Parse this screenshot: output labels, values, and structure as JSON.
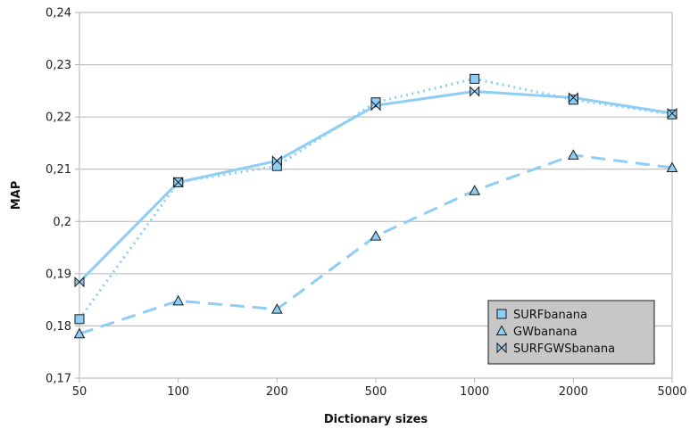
{
  "chart_data": {
    "type": "line",
    "title": "",
    "xlabel": "Dictionary sizes",
    "ylabel": "MAP",
    "categories": [
      "50",
      "100",
      "200",
      "500",
      "1000",
      "2000",
      "5000"
    ],
    "ylim": [
      0.17,
      0.24
    ],
    "yticks": [
      0.17,
      0.18,
      0.19,
      0.2,
      0.21,
      0.22,
      0.23,
      0.24
    ],
    "ytick_labels": [
      "0,17",
      "0,18",
      "0,19",
      "0,2",
      "0,21",
      "0,22",
      "0,23",
      "0,24"
    ],
    "grid": true,
    "legend_position": "bottom-right",
    "series": [
      {
        "name": "SURFbanana",
        "values": [
          0.1813,
          0.2075,
          0.2106,
          0.2228,
          0.2273,
          0.2233,
          0.2205
        ],
        "line": "dotted",
        "marker": "square",
        "color": "#8ecdf5"
      },
      {
        "name": "GWbanana",
        "values": [
          0.1785,
          0.1848,
          0.1832,
          0.1972,
          0.2059,
          0.2127,
          0.2103
        ],
        "line": "dashed",
        "marker": "triangle",
        "color": "#8ecdf5"
      },
      {
        "name": "SURFGWSbanana",
        "values": [
          0.1884,
          0.2075,
          0.2116,
          0.2222,
          0.2249,
          0.2237,
          0.2207
        ],
        "line": "solid",
        "marker": "bowtie",
        "color": "#8ecdf5"
      }
    ]
  }
}
